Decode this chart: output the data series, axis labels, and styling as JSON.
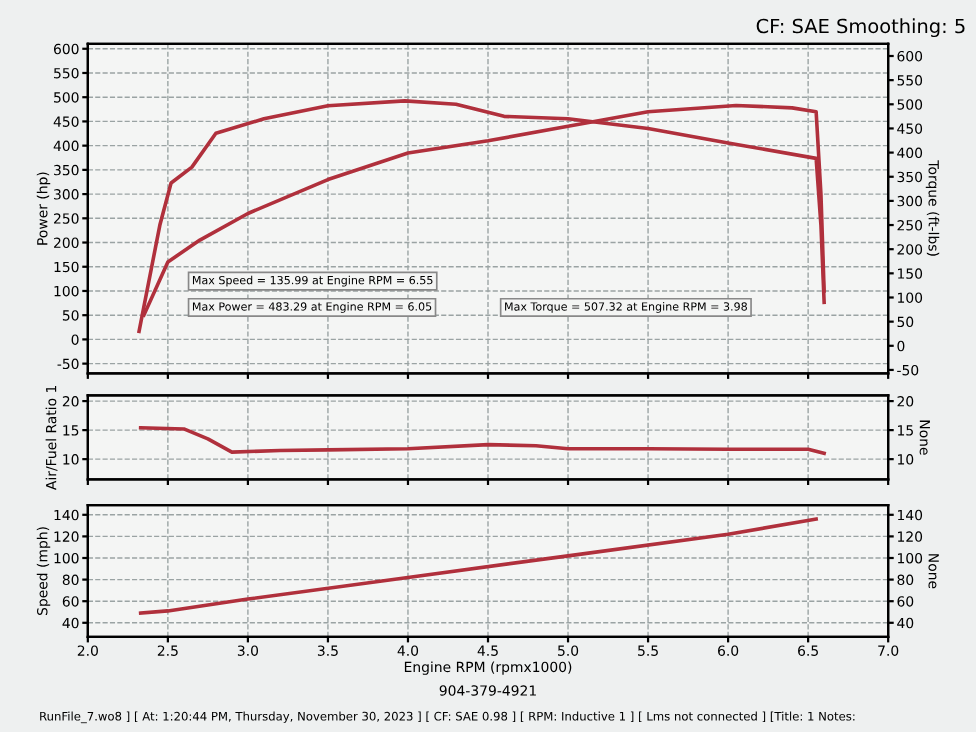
{
  "chart_data": [
    {
      "type": "line",
      "ylabel": "Power (hp)",
      "y2label": "Torque (ft-lbs)",
      "xlim": [
        2.0,
        7.0
      ],
      "xticks": [
        2.0,
        2.5,
        3.0,
        3.5,
        4.0,
        4.5,
        5.0,
        5.5,
        6.0,
        6.5,
        7.0
      ],
      "ylim": [
        -70,
        610
      ],
      "yticks": [
        -50,
        0,
        50,
        100,
        150,
        200,
        250,
        300,
        350,
        400,
        450,
        500,
        550,
        600
      ],
      "y2lim": [
        -57,
        625
      ],
      "y2ticks": [
        -50,
        0,
        50,
        100,
        150,
        200,
        250,
        300,
        350,
        400,
        450,
        500,
        550,
        600
      ],
      "tick_labels": "y",
      "grid": true,
      "legend": false,
      "marker": "none",
      "line_style": "solid",
      "series": [
        {
          "color": "#b0303c",
          "x": [
            2.35,
            2.5,
            2.7,
            3.0,
            3.5,
            4.0,
            4.5,
            5.0,
            5.5,
            6.05,
            6.4,
            6.55,
            6.58,
            6.6
          ],
          "values": [
            50,
            160,
            205,
            260,
            330,
            385,
            410,
            440,
            470,
            483,
            478,
            470,
            300,
            100
          ]
        },
        {
          "color": "#b0303c",
          "axis": "y2",
          "x": [
            2.32,
            2.45,
            2.52,
            2.65,
            2.8,
            3.1,
            3.5,
            3.98,
            4.3,
            4.6,
            5.0,
            5.5,
            6.0,
            6.55,
            6.58,
            6.6
          ],
          "values": [
            30,
            250,
            337,
            370,
            440,
            470,
            497,
            507,
            500,
            475,
            470,
            450,
            420,
            388,
            250,
            90
          ]
        }
      ],
      "annotations": [
        "CF: SAE Smoothing: 5",
        "Max Speed = 135.99 at Engine RPM = 6.55",
        "Max Power = 483.29 at Engine RPM = 6.05",
        "Max Torque = 507.32 at Engine RPM = 3.98"
      ]
    },
    {
      "type": "line",
      "ylabel": "Air/Fuel Ratio 1",
      "y2label": "None",
      "xlim": [
        2.0,
        7.0
      ],
      "xticks": [
        2.0,
        2.5,
        3.0,
        3.5,
        4.0,
        4.5,
        5.0,
        5.5,
        6.0,
        6.5,
        7.0
      ],
      "ylim": [
        6.5,
        21
      ],
      "yticks": [
        10,
        15,
        20
      ],
      "y2lim": [
        6.5,
        21
      ],
      "y2ticks": [
        10,
        15,
        20
      ],
      "tick_labels": "y",
      "grid": true,
      "legend": false,
      "marker": "none",
      "line_style": "solid",
      "series": [
        {
          "color": "#b0303c",
          "x": [
            2.33,
            2.6,
            2.75,
            2.9,
            3.2,
            3.5,
            4.0,
            4.5,
            4.8,
            5.0,
            5.5,
            6.0,
            6.5,
            6.6
          ],
          "values": [
            15.4,
            15.2,
            13.5,
            11.2,
            11.5,
            11.6,
            11.8,
            12.5,
            12.3,
            11.8,
            11.8,
            11.7,
            11.7,
            11.0
          ]
        }
      ]
    },
    {
      "type": "line",
      "ylabel": "Speed (mph)",
      "y2label": "None",
      "xlabel": "Engine RPM (rpmx1000)",
      "xlim": [
        2.0,
        7.0
      ],
      "xticks": [
        {
          "value": 2,
          "label": "2.0"
        },
        2.5,
        {
          "value": 3,
          "label": "3.0"
        },
        3.5,
        {
          "value": 4,
          "label": "4.0"
        },
        4.5,
        {
          "value": 5,
          "label": "5.0"
        },
        5.5,
        {
          "value": 6,
          "label": "6.0"
        },
        6.5,
        {
          "value": 7,
          "label": "7.0"
        }
      ],
      "ylim": [
        27,
        149
      ],
      "yticks": [
        40,
        60,
        80,
        100,
        120,
        140
      ],
      "y2lim": [
        27,
        149
      ],
      "y2ticks": [
        40,
        60,
        80,
        100,
        120,
        140
      ],
      "grid": true,
      "legend": false,
      "marker": "none",
      "line_style": "solid",
      "series": [
        {
          "color": "#b0303c",
          "x": [
            2.33,
            2.5,
            3.0,
            4.0,
            5.0,
            6.0,
            6.55
          ],
          "values": [
            49,
            51,
            62,
            82,
            102,
            122,
            136
          ]
        }
      ],
      "annotations": [
        "904-379-4921",
        "RunFile_7.wo8 ] [ At: 1:20:44 PM, Thursday, November 30, 2023 ] [ CF: SAE 0.98 ] [ RPM: Inductive 1 ] [ Lms not connected ] [Title: 1 Notes:"
      ]
    }
  ]
}
